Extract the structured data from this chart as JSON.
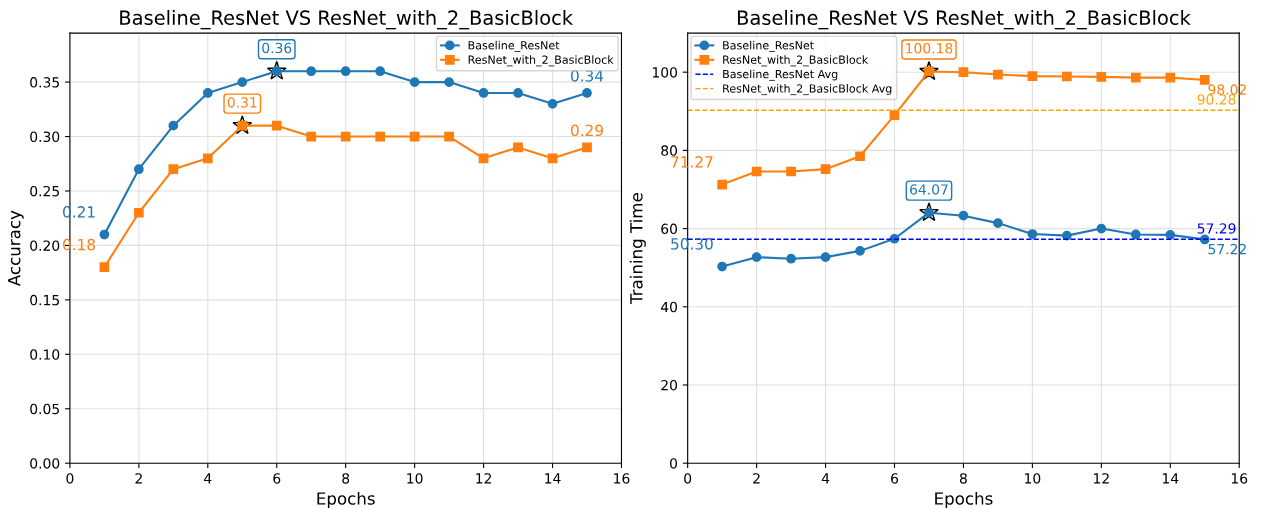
{
  "chart_data": [
    {
      "type": "line",
      "title": "Baseline_ResNet VS ResNet_with_2_BasicBlock",
      "xlabel": "Epochs",
      "ylabel": "Accuracy",
      "x": [
        1,
        2,
        3,
        4,
        5,
        6,
        7,
        8,
        9,
        10,
        11,
        12,
        13,
        14,
        15
      ],
      "series": [
        {
          "name": "Baseline_ResNet",
          "color": "#1f77b4",
          "marker": "circle",
          "values": [
            0.21,
            0.27,
            0.31,
            0.34,
            0.35,
            0.36,
            0.36,
            0.36,
            0.36,
            0.35,
            0.35,
            0.34,
            0.34,
            0.33,
            0.34
          ]
        },
        {
          "name": "ResNet_with_2_BasicBlock",
          "color": "#ff7f0e",
          "marker": "square",
          "values": [
            0.18,
            0.23,
            0.27,
            0.28,
            0.31,
            0.31,
            0.3,
            0.3,
            0.3,
            0.3,
            0.3,
            0.28,
            0.29,
            0.28,
            0.29
          ]
        }
      ],
      "annotations": [
        {
          "text": "0.21",
          "x": 1,
          "y": 0.21
        },
        {
          "text": "0.36",
          "x": 6,
          "y": 0.36
        },
        {
          "text": "0.34",
          "x": 15,
          "y": 0.34
        },
        {
          "text": "0.18",
          "x": 1,
          "y": 0.18
        },
        {
          "text": "0.31",
          "x": 5,
          "y": 0.31
        },
        {
          "text": "0.29",
          "x": 15,
          "y": 0.29
        }
      ],
      "xlim": [
        0,
        16
      ],
      "xticks": [
        0,
        2,
        4,
        6,
        8,
        10,
        12,
        14,
        16
      ],
      "ylim": [
        0,
        0.395
      ],
      "yticks": [
        {
          "value": 0,
          "label": "0.00"
        },
        {
          "value": 0.05,
          "label": "0.05"
        },
        {
          "value": 0.1,
          "label": "0.10"
        },
        {
          "value": 0.15,
          "label": "0.15"
        },
        {
          "value": 0.2,
          "label": "0.20"
        },
        {
          "value": 0.25,
          "label": "0.25"
        },
        {
          "value": 0.3,
          "label": "0.30"
        },
        {
          "value": 0.35,
          "label": "0.35"
        }
      ],
      "grid": true,
      "legend": "top right"
    },
    {
      "type": "line",
      "title": "Baseline_ResNet VS ResNet_with_2_BasicBlock",
      "xlabel": "Epochs",
      "ylabel": "Training Time",
      "x": [
        1,
        2,
        3,
        4,
        5,
        6,
        7,
        8,
        9,
        10,
        11,
        12,
        13,
        14,
        15
      ],
      "series": [
        {
          "name": "Baseline_ResNet",
          "color": "#1f77b4",
          "marker": "circle",
          "values": [
            50.3,
            52.7,
            52.3,
            52.7,
            54.3,
            57.4,
            64.07,
            63.3,
            61.4,
            58.6,
            58.2,
            60.0,
            58.5,
            58.4,
            57.22
          ]
        },
        {
          "name": "ResNet_with_2_BasicBlock",
          "color": "#ff7f0e",
          "marker": "square",
          "values": [
            71.27,
            74.6,
            74.6,
            75.2,
            78.5,
            89.0,
            100.18,
            100.0,
            99.4,
            99.0,
            98.9,
            98.8,
            98.6,
            98.6,
            98.02
          ]
        }
      ],
      "ref_lines": [
        {
          "axis": "y",
          "value": 57.29,
          "label": "Baseline_ResNet Avg",
          "color": "#0000ff",
          "line_style": "dashed"
        },
        {
          "axis": "y",
          "value": 90.28,
          "label": "ResNet_with_2_BasicBlock Avg",
          "color": "#ffa500",
          "line_style": "dashed"
        }
      ],
      "annotations": [
        {
          "text": "57.29",
          "x": 16,
          "y": 57.29
        },
        {
          "text": "90.28",
          "x": 16,
          "y": 90.28
        },
        {
          "text": "50.30",
          "x": 1,
          "y": 50.3
        },
        {
          "text": "64.07",
          "x": 7,
          "y": 64.07
        },
        {
          "text": "57.22",
          "x": 15,
          "y": 57.22
        },
        {
          "text": "71.27",
          "x": 1,
          "y": 71.27
        },
        {
          "text": "100.18",
          "x": 7,
          "y": 100.18
        },
        {
          "text": "98.02",
          "x": 15,
          "y": 98.02
        }
      ],
      "xlim": [
        0,
        16
      ],
      "xticks": [
        0,
        2,
        4,
        6,
        8,
        10,
        12,
        14,
        16
      ],
      "ylim": [
        0,
        110
      ],
      "yticks": [
        0,
        20,
        40,
        60,
        80,
        100
      ],
      "grid": true,
      "legend": "top left"
    }
  ]
}
